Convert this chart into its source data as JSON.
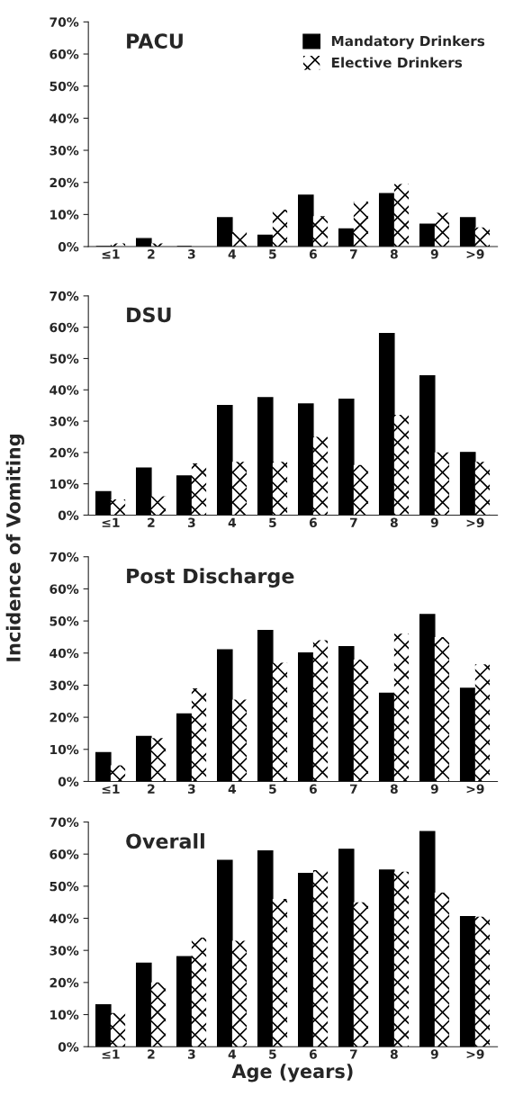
{
  "chart_data": [
    {
      "type": "bar",
      "title": "PACU",
      "categories": [
        "≤1",
        "2",
        "3",
        "4",
        "5",
        "6",
        "7",
        "8",
        "9",
        ">9"
      ],
      "series": [
        {
          "name": "Mandatory Drinkers",
          "color": "#000000",
          "values": [
            0,
            2.5,
            0,
            9,
            3.5,
            16,
            5.5,
            16.5,
            7,
            9
          ]
        },
        {
          "name": "Elective Drinkers",
          "color": "#ffffff",
          "values": [
            1,
            1,
            0,
            4.5,
            11.5,
            9.5,
            14,
            19.5,
            10.5,
            6
          ]
        }
      ],
      "ylim": [
        0,
        70
      ],
      "yticks": [
        {
          "value": 0,
          "label": "0%"
        },
        {
          "value": 10,
          "label": "10%"
        },
        {
          "value": 20,
          "label": "20%"
        },
        {
          "value": 30,
          "label": "30%"
        },
        {
          "value": 40,
          "label": "40%"
        },
        {
          "value": 50,
          "label": "50%"
        },
        {
          "value": 60,
          "label": "60%"
        },
        {
          "value": 70,
          "label": "70%"
        }
      ],
      "legend": "top right",
      "grid": false
    },
    {
      "type": "bar",
      "title": "DSU",
      "ylabel": "Incidence of Vomiting",
      "categories": [
        "≤1",
        "2",
        "3",
        "4",
        "5",
        "6",
        "7",
        "8",
        "9",
        ">9"
      ],
      "series": [
        {
          "color": "#000000",
          "values": [
            7.5,
            15,
            12.5,
            35,
            37.5,
            35.5,
            37,
            58,
            44.5,
            20
          ]
        },
        {
          "color": "#ffffff",
          "values": [
            5,
            6,
            16.5,
            17,
            17,
            25,
            16,
            32,
            20,
            17
          ]
        }
      ],
      "ylim": [
        0,
        70
      ],
      "yticks": [
        {
          "value": 0,
          "label": "0%"
        },
        {
          "value": 10,
          "label": "10%"
        },
        {
          "value": 20,
          "label": "20%"
        },
        {
          "value": 30,
          "label": "30%"
        },
        {
          "value": 40,
          "label": "40%"
        },
        {
          "value": 50,
          "label": "50%"
        },
        {
          "value": 60,
          "label": "60%"
        },
        {
          "value": 70,
          "label": "70%"
        }
      ],
      "grid": false
    },
    {
      "type": "bar",
      "title": "Post Discharge",
      "categories": [
        "≤1",
        "2",
        "3",
        "4",
        "5",
        "6",
        "7",
        "8",
        "9",
        ">9"
      ],
      "series": [
        {
          "color": "#000000",
          "values": [
            9,
            14,
            21,
            41,
            47,
            40,
            42,
            27.5,
            52,
            29
          ]
        },
        {
          "color": "#ffffff",
          "values": [
            5,
            13.5,
            29,
            25.5,
            37,
            44,
            38,
            46,
            45,
            36.5
          ]
        }
      ],
      "ylim": [
        0,
        70
      ],
      "yticks": [
        {
          "value": 0,
          "label": "0%"
        },
        {
          "value": 10,
          "label": "10%"
        },
        {
          "value": 20,
          "label": "20%"
        },
        {
          "value": 30,
          "label": "30%"
        },
        {
          "value": 40,
          "label": "40%"
        },
        {
          "value": 50,
          "label": "50%"
        },
        {
          "value": 60,
          "label": "60%"
        },
        {
          "value": 70,
          "label": "70%"
        }
      ],
      "grid": false
    },
    {
      "type": "bar",
      "title": "Overall",
      "xlabel": "Age (years)",
      "categories": [
        "≤1",
        "2",
        "3",
        "4",
        "5",
        "6",
        "7",
        "8",
        "9",
        ">9"
      ],
      "series": [
        {
          "color": "#000000",
          "values": [
            13,
            26,
            28,
            58,
            61,
            54,
            61.5,
            55,
            67,
            40.5
          ]
        },
        {
          "color": "#ffffff",
          "values": [
            10.5,
            20,
            34,
            33,
            46,
            55,
            45,
            54.5,
            48,
            40.5
          ]
        }
      ],
      "ylim": [
        0,
        70
      ],
      "yticks": [
        {
          "value": 0,
          "label": "0%"
        },
        {
          "value": 10,
          "label": "10%"
        },
        {
          "value": 20,
          "label": "20%"
        },
        {
          "value": 30,
          "label": "30%"
        },
        {
          "value": 40,
          "label": "40%"
        },
        {
          "value": 50,
          "label": "50%"
        },
        {
          "value": 60,
          "label": "60%"
        },
        {
          "value": 70,
          "label": "70%"
        }
      ],
      "grid": false
    }
  ]
}
